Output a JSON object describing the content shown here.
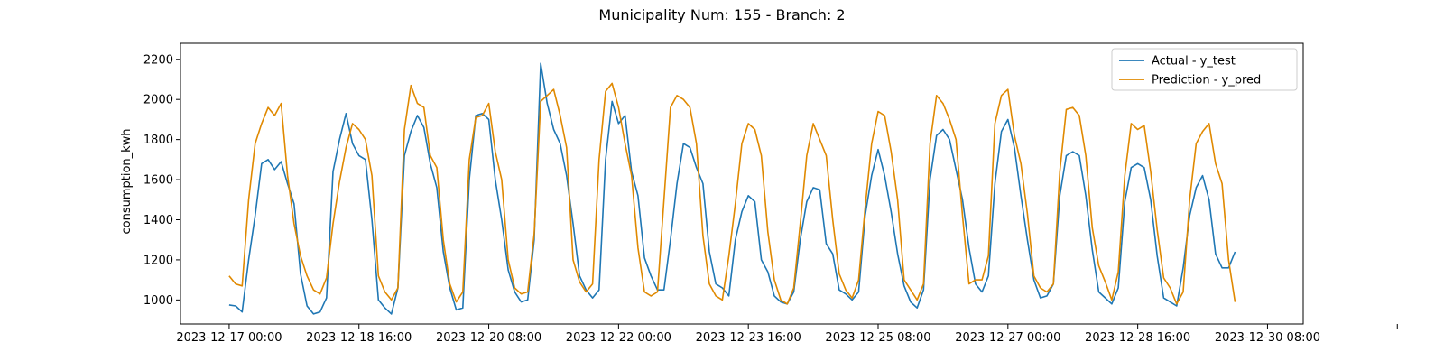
{
  "chart_data": {
    "type": "line",
    "title": "Municipality Num: 155 - Branch: 2",
    "xlabel": "",
    "ylabel": "consumption_kwh",
    "ylim": [
      880,
      2280
    ],
    "yticks": [
      1000,
      1200,
      1400,
      1600,
      1800,
      2000,
      2200
    ],
    "x_start": "2023-12-17 00:00",
    "x_step_hours": 2,
    "xlim_hours": [
      -15,
      331
    ],
    "xtick_positions_hours": [
      0,
      40,
      80,
      120,
      160,
      200,
      240,
      280,
      320,
      360
    ],
    "xtick_labels": [
      "2023-12-17 00:00",
      "2023-12-18 16:00",
      "2023-12-20 08:00",
      "2023-12-22 00:00",
      "2023-12-23 16:00",
      "2023-12-25 08:00",
      "2023-12-27 00:00",
      "2023-12-28 16:00",
      "2023-12-30 08:00",
      ""
    ],
    "grid": false,
    "legend_position": "top-right",
    "series": [
      {
        "name": "Actual - y_test",
        "color": "#1f77b4",
        "values": [
          975,
          970,
          940,
          1200,
          1420,
          1680,
          1700,
          1650,
          1690,
          1580,
          1480,
          1130,
          970,
          930,
          940,
          1010,
          1640,
          1800,
          1930,
          1780,
          1720,
          1700,
          1400,
          1000,
          960,
          930,
          1060,
          1720,
          1840,
          1920,
          1860,
          1680,
          1560,
          1240,
          1060,
          950,
          960,
          1600,
          1920,
          1930,
          1900,
          1600,
          1400,
          1150,
          1040,
          990,
          1000,
          1300,
          2180,
          1980,
          1850,
          1780,
          1620,
          1380,
          1120,
          1050,
          1010,
          1050,
          1700,
          1990,
          1880,
          1920,
          1640,
          1520,
          1210,
          1120,
          1050,
          1050,
          1300,
          1580,
          1780,
          1760,
          1660,
          1580,
          1240,
          1080,
          1060,
          1020,
          1300,
          1440,
          1520,
          1490,
          1200,
          1140,
          1020,
          990,
          980,
          1040,
          1300,
          1490,
          1560,
          1550,
          1280,
          1230,
          1050,
          1030,
          1000,
          1040,
          1420,
          1620,
          1750,
          1620,
          1440,
          1230,
          1070,
          990,
          960,
          1050,
          1600,
          1820,
          1850,
          1800,
          1650,
          1500,
          1260,
          1080,
          1040,
          1120,
          1580,
          1840,
          1900,
          1760,
          1520,
          1300,
          1100,
          1010,
          1020,
          1080,
          1520,
          1720,
          1740,
          1720,
          1520,
          1250,
          1040,
          1010,
          980,
          1060,
          1490,
          1660,
          1680,
          1660,
          1500,
          1220,
          1010,
          990,
          970,
          1160,
          1420,
          1560,
          1620,
          1500,
          1230,
          1160,
          1160,
          1240
        ]
      },
      {
        "name": "Prediction - y_pred",
        "color": "#e08900",
        "values": [
          1120,
          1080,
          1070,
          1500,
          1780,
          1880,
          1960,
          1920,
          1980,
          1620,
          1380,
          1220,
          1120,
          1050,
          1030,
          1110,
          1380,
          1590,
          1760,
          1880,
          1850,
          1800,
          1620,
          1120,
          1040,
          1000,
          1060,
          1850,
          2070,
          1980,
          1960,
          1720,
          1660,
          1300,
          1080,
          990,
          1040,
          1700,
          1910,
          1920,
          1980,
          1740,
          1600,
          1200,
          1060,
          1030,
          1040,
          1330,
          1990,
          2020,
          2050,
          1920,
          1760,
          1200,
          1090,
          1040,
          1080,
          1700,
          2040,
          2080,
          1960,
          1780,
          1620,
          1260,
          1040,
          1020,
          1040,
          1500,
          1960,
          2020,
          2000,
          1960,
          1780,
          1320,
          1080,
          1020,
          1000,
          1220,
          1480,
          1780,
          1880,
          1850,
          1720,
          1340,
          1100,
          1000,
          980,
          1060,
          1380,
          1720,
          1880,
          1800,
          1720,
          1400,
          1130,
          1050,
          1010,
          1100,
          1460,
          1780,
          1940,
          1920,
          1740,
          1500,
          1100,
          1050,
          1000,
          1080,
          1780,
          2020,
          1980,
          1900,
          1800,
          1420,
          1080,
          1100,
          1100,
          1220,
          1880,
          2020,
          2050,
          1820,
          1680,
          1430,
          1120,
          1060,
          1040,
          1080,
          1640,
          1950,
          1960,
          1920,
          1720,
          1360,
          1170,
          1090,
          1000,
          1140,
          1620,
          1880,
          1850,
          1870,
          1640,
          1350,
          1110,
          1060,
          980,
          1040,
          1500,
          1780,
          1840,
          1880,
          1680,
          1580,
          1200,
          990
        ]
      }
    ]
  }
}
